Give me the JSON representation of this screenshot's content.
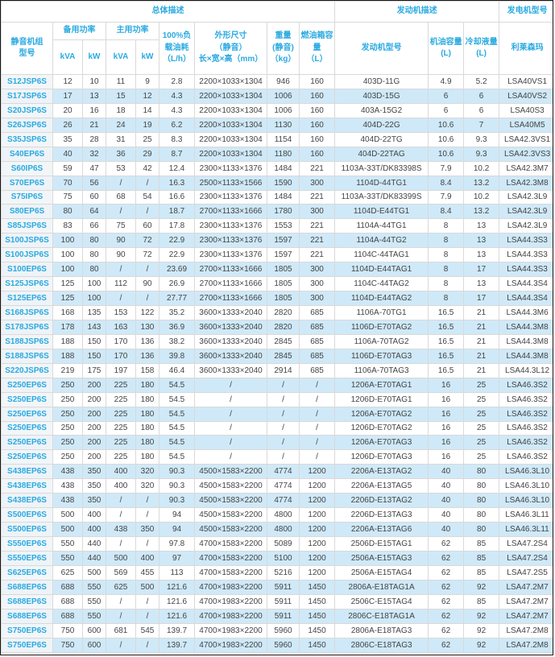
{
  "accent_color": "#2aaae1",
  "alt_row_color": "#cfe9f8",
  "table": {
    "groups": {
      "overall": "总体描述",
      "engine": "发动机描述",
      "generator": "发电机型号"
    },
    "headers": {
      "model": "静音机组\n型号",
      "standby": "备用功率",
      "prime": "主用功率",
      "kva": "kVA",
      "kw": "kW",
      "fuel": "100%负\n载油耗\n（L/h）",
      "dimensions": "外形尺寸\n（静音）\n长×宽×高（mm）",
      "weight": "重量\n(静音)\n（kg）",
      "tank": "燃油箱容\n量\n（L）",
      "engine_model": "发动机型号",
      "oil": "机油容量\n(L)",
      "coolant": "冷却液量\n(L)",
      "leroy_somer": "利莱森玛"
    },
    "rows": [
      [
        "S12JSP6S",
        "12",
        "10",
        "11",
        "9",
        "2.8",
        "2200×1033×1304",
        "946",
        "160",
        "403D-11G",
        "4.9",
        "5.2",
        "LSA40VS1"
      ],
      [
        "S17JSP6S",
        "17",
        "13",
        "15",
        "12",
        "4.3",
        "2200×1033×1304",
        "1006",
        "160",
        "403D-15G",
        "6",
        "6",
        "LSA40VS2"
      ],
      [
        "S20JSP6S",
        "20",
        "16",
        "18",
        "14",
        "4.3",
        "2200×1033×1304",
        "1006",
        "160",
        "403A-15G2",
        "6",
        "6",
        "LSA40S3"
      ],
      [
        "S26JSP6S",
        "26",
        "21",
        "24",
        "19",
        "6.2",
        "2200×1033×1304",
        "1130",
        "160",
        "404D-22G",
        "10.6",
        "7",
        "LSA40M5"
      ],
      [
        "S35JSP6S",
        "35",
        "28",
        "31",
        "25",
        "8.3",
        "2200×1033×1304",
        "1154",
        "160",
        "404D-22TG",
        "10.6",
        "9.3",
        "LSA42.3VS1"
      ],
      [
        "S40EP6S",
        "40",
        "32",
        "36",
        "29",
        "8.7",
        "2200×1033×1304",
        "1180",
        "160",
        "404D-22TAG",
        "10.6",
        "9.3",
        "LSA42.3VS3"
      ],
      [
        "S60IP6S",
        "59",
        "47",
        "53",
        "42",
        "12.4",
        "2300×1133×1376",
        "1484",
        "221",
        "1103A-33T/DK83398S",
        "7.9",
        "10.2",
        "LSA42.3M7"
      ],
      [
        "S70EP6S",
        "70",
        "56",
        "/",
        "/",
        "16.3",
        "2500×1133×1566",
        "1590",
        "300",
        "1104D-44TG1",
        "8.4",
        "13.2",
        "LSA42.3M8"
      ],
      [
        "S75IP6S",
        "75",
        "60",
        "68",
        "54",
        "16.6",
        "2300×1133×1376",
        "1484",
        "221",
        "1103A-33T/DK83399S",
        "7.9",
        "10.2",
        "LSA42.3L9"
      ],
      [
        "S80EP6S",
        "80",
        "64",
        "/",
        "/",
        "18.7",
        "2700×1133×1666",
        "1780",
        "300",
        "1104D-E44TG1",
        "8.4",
        "13.2",
        "LSA42.3L9"
      ],
      [
        "S85JSP6S",
        "83",
        "66",
        "75",
        "60",
        "17.8",
        "2300×1133×1376",
        "1553",
        "221",
        "1104A-44TG1",
        "8",
        "13",
        "LSA42.3L9"
      ],
      [
        "S100JSP6S",
        "100",
        "80",
        "90",
        "72",
        "22.9",
        "2300×1133×1376",
        "1597",
        "221",
        "1104A-44TG2",
        "8",
        "13",
        "LSA44.3S3"
      ],
      [
        "S100JSP6S",
        "100",
        "80",
        "90",
        "72",
        "22.9",
        "2300×1133×1376",
        "1597",
        "221",
        "1104C-44TAG1",
        "8",
        "13",
        "LSA44.3S3"
      ],
      [
        "S100EP6S",
        "100",
        "80",
        "/",
        "/",
        "23.69",
        "2700×1133×1666",
        "1805",
        "300",
        "1104D-E44TAG1",
        "8",
        "17",
        "LSA44.3S3"
      ],
      [
        "S125JSP6S",
        "125",
        "100",
        "112",
        "90",
        "26.9",
        "2700×1133×1666",
        "1805",
        "300",
        "1104C-44TAG2",
        "8",
        "13",
        "LSA44.3S4"
      ],
      [
        "S125EP6S",
        "125",
        "100",
        "/",
        "/",
        "27.77",
        "2700×1133×1666",
        "1805",
        "300",
        "1104D-E44TAG2",
        "8",
        "17",
        "LSA44.3S4"
      ],
      [
        "S168JSP6S",
        "168",
        "135",
        "153",
        "122",
        "35.2",
        "3600×1333×2040",
        "2820",
        "685",
        "1106A-70TG1",
        "16.5",
        "21",
        "LSA44.3M6"
      ],
      [
        "S178JSP6S",
        "178",
        "143",
        "163",
        "130",
        "36.9",
        "3600×1333×2040",
        "2820",
        "685",
        "1106D-E70TAG2",
        "16.5",
        "21",
        "LSA44.3M8"
      ],
      [
        "S188JSP6S",
        "188",
        "150",
        "170",
        "136",
        "38.2",
        "3600×1333×2040",
        "2845",
        "685",
        "1106A-70TAG2",
        "16.5",
        "21",
        "LSA44.3M8"
      ],
      [
        "S188JSP6S",
        "188",
        "150",
        "170",
        "136",
        "39.8",
        "3600×1333×2040",
        "2845",
        "685",
        "1106D-E70TAG3",
        "16.5",
        "21",
        "LSA44.3M8"
      ],
      [
        "S220JSP6S",
        "219",
        "175",
        "197",
        "158",
        "46.4",
        "3600×1333×2040",
        "2914",
        "685",
        "1106A-70TAG3",
        "16.5",
        "21",
        "LSA44.3L12"
      ],
      [
        "S250EP6S",
        "250",
        "200",
        "225",
        "180",
        "54.5",
        "/",
        "/",
        "/",
        "1206A-E70TAG1",
        "16",
        "25",
        "LSA46.3S2"
      ],
      [
        "S250EP6S",
        "250",
        "200",
        "225",
        "180",
        "54.5",
        "/",
        "/",
        "/",
        "1206D-E70TAG1",
        "16",
        "25",
        "LSA46.3S2"
      ],
      [
        "S250EP6S",
        "250",
        "200",
        "225",
        "180",
        "54.5",
        "/",
        "/",
        "/",
        "1206A-E70TAG2",
        "16",
        "25",
        "LSA46.3S2"
      ],
      [
        "S250EP6S",
        "250",
        "200",
        "225",
        "180",
        "54.5",
        "/",
        "/",
        "/",
        "1206D-E70TAG2",
        "16",
        "25",
        "LSA46.3S2"
      ],
      [
        "S250EP6S",
        "250",
        "200",
        "225",
        "180",
        "54.5",
        "/",
        "/",
        "/",
        "1206A-E70TAG3",
        "16",
        "25",
        "LSA46.3S2"
      ],
      [
        "S250EP6S",
        "250",
        "200",
        "225",
        "180",
        "54.5",
        "/",
        "/",
        "/",
        "1206D-E70TAG3",
        "16",
        "25",
        "LSA46.3S2"
      ],
      [
        "S438EP6S",
        "438",
        "350",
        "400",
        "320",
        "90.3",
        "4500×1583×2200",
        "4774",
        "1200",
        "2206A-E13TAG2",
        "40",
        "80",
        "LSA46.3L10"
      ],
      [
        "S438EP6S",
        "438",
        "350",
        "400",
        "320",
        "90.3",
        "4500×1583×2200",
        "4774",
        "1200",
        "2206A-E13TAG5",
        "40",
        "80",
        "LSA46.3L10"
      ],
      [
        "S438EP6S",
        "438",
        "350",
        "/",
        "/",
        "90.3",
        "4500×1583×2200",
        "4774",
        "1200",
        "2206D-E13TAG2",
        "40",
        "80",
        "LSA46.3L10"
      ],
      [
        "S500EP6S",
        "500",
        "400",
        "/",
        "/",
        "94",
        "4500×1583×2200",
        "4800",
        "1200",
        "2206D-E13TAG3",
        "40",
        "80",
        "LSA46.3L11"
      ],
      [
        "S500EP6S",
        "500",
        "400",
        "438",
        "350",
        "94",
        "4500×1583×2200",
        "4800",
        "1200",
        "2206A-E13TAG6",
        "40",
        "80",
        "LSA46.3L11"
      ],
      [
        "S550EP6S",
        "550",
        "440",
        "/",
        "/",
        "97.8",
        "4700×1583×2200",
        "5089",
        "1200",
        "2506D-E15TAG1",
        "62",
        "85",
        "LSA47.2S4"
      ],
      [
        "S550EP6S",
        "550",
        "440",
        "500",
        "400",
        "97",
        "4700×1583×2200",
        "5100",
        "1200",
        "2506A-E15TAG3",
        "62",
        "85",
        "LSA47.2S4"
      ],
      [
        "S625EP6S",
        "625",
        "500",
        "569",
        "455",
        "113",
        "4700×1583×2200",
        "5216",
        "1200",
        "2506A-E15TAG4",
        "62",
        "85",
        "LSA47.2S5"
      ],
      [
        "S688EP6S",
        "688",
        "550",
        "625",
        "500",
        "121.6",
        "4700×1983×2200",
        "5911",
        "1450",
        "2806A-E18TAG1A",
        "62",
        "92",
        "LSA47.2M7"
      ],
      [
        "S688EP6S",
        "688",
        "550",
        "/",
        "/",
        "121.6",
        "4700×1983×2200",
        "5911",
        "1450",
        "2506C-E15TAG4",
        "62",
        "85",
        "LSA47.2M7"
      ],
      [
        "S688EP6S",
        "688",
        "550",
        "/",
        "/",
        "121.6",
        "4700×1983×2200",
        "5911",
        "1450",
        "2806C-E18TAG1A",
        "62",
        "92",
        "LSA47.2M7"
      ],
      [
        "S750EP6S",
        "750",
        "600",
        "681",
        "545",
        "139.7",
        "4700×1983×2200",
        "5960",
        "1450",
        "2806A-E18TAG3",
        "62",
        "92",
        "LSA47.2M8"
      ],
      [
        "S750EP6S",
        "750",
        "600",
        "/",
        "/",
        "139.7",
        "4700×1983×2200",
        "5960",
        "1450",
        "2806C-E18TAG3",
        "62",
        "92",
        "LSA47.2M8"
      ]
    ]
  }
}
